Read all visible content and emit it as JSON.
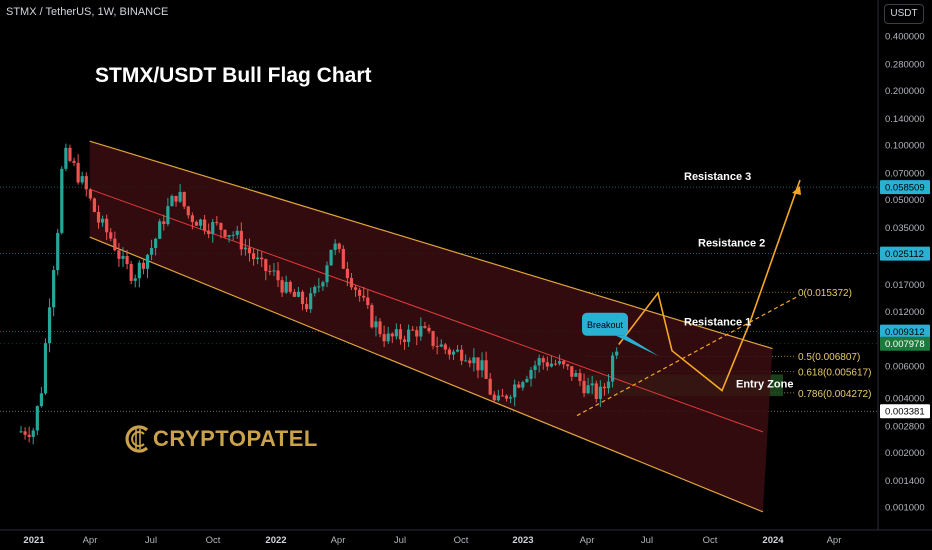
{
  "header": {
    "symbol": "STMX / TetherUS, 1W, BINANCE",
    "currency": "USDT"
  },
  "logo_text": "CRYPTOPATEL",
  "colors": {
    "bull": "#26a69a",
    "bear": "#ef5350",
    "channel": "#e0a33c",
    "channel_fill": "#3a0d10",
    "midline": "#e23b3b",
    "projection": "#f5a623",
    "entry_zone": "#1e4d1e",
    "tag_cyan": "#2ab0d3",
    "tag_green": "#1b7a3e",
    "tag_white": "#ffffff"
  },
  "chart_data": {
    "type": "candlestick",
    "title": "STMX/USDT Bull Flag Chart",
    "scale": "log",
    "ylim": [
      0.0009,
      0.47
    ],
    "y_ticks": [
      "0.400000",
      "0.280000",
      "0.200000",
      "0.140000",
      "0.100000",
      "0.070000",
      "0.050000",
      "0.035000",
      "0.025000",
      "0.017000",
      "0.012000",
      "0.008000",
      "0.006000",
      "0.004000",
      "0.002800",
      "0.002000",
      "0.001400",
      "0.001000"
    ],
    "x_ticks": [
      "2021",
      "Apr",
      "Jul",
      "Oct",
      "2022",
      "Apr",
      "Jul",
      "Oct",
      "2023",
      "Apr",
      "Jul",
      "Oct",
      "2024",
      "Apr"
    ],
    "price_tags": [
      {
        "label": "0.058509",
        "value": 0.058509,
        "style": "cyan"
      },
      {
        "label": "0.025112",
        "value": 0.025112,
        "style": "cyan"
      },
      {
        "label": "0.009312",
        "value": 0.009312,
        "style": "cyan"
      },
      {
        "label": "0.007978",
        "value": 0.007978,
        "style": "green"
      },
      {
        "label": "0.003381",
        "value": 0.003381,
        "style": "white"
      }
    ],
    "annotations": [
      {
        "text": "Resistance 3",
        "value": 0.058509
      },
      {
        "text": "Resistance 2",
        "value": 0.025112
      },
      {
        "text": "Resistance 1",
        "value": 0.009312
      },
      {
        "text": "Entry Zone",
        "value": 0.0048
      },
      {
        "text": "Breakout",
        "value": 0.0099
      }
    ],
    "fib_levels": [
      {
        "label": "0(0.015372)",
        "value": 0.015372
      },
      {
        "label": "0.5(0.006807)",
        "value": 0.006807
      },
      {
        "label": "0.618(0.005617)",
        "value": 0.005617
      },
      {
        "label": "0.786(0.004272)",
        "value": 0.004272
      }
    ]
  }
}
